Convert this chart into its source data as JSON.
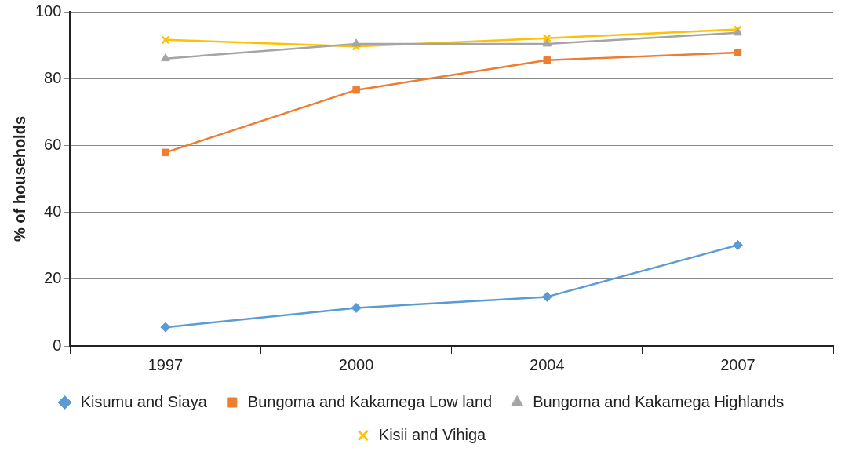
{
  "chart_data": {
    "type": "line",
    "ylabel": "% of households",
    "categories": [
      "1997",
      "2000",
      "2004",
      "2007"
    ],
    "series": [
      {
        "name": "Kisumu and Siaya",
        "color": "#5b9bd5",
        "marker": "diamond",
        "values": [
          5.6,
          11.4,
          14.7,
          30.2
        ]
      },
      {
        "name": "Bungoma and Kakamega Low land",
        "color": "#ed7d31",
        "marker": "square",
        "values": [
          57.9,
          76.6,
          85.5,
          87.8
        ]
      },
      {
        "name": "Bungoma and Kakamega Highlands",
        "color": "#a5a5a5",
        "marker": "triangle",
        "values": [
          86,
          90.4,
          90.4,
          93.7
        ]
      },
      {
        "name": "Kisii and Vihiga",
        "color": "#ffc000",
        "marker": "cross",
        "values": [
          91.6,
          89.6,
          92.1,
          94.7
        ]
      }
    ],
    "ylim": [
      0,
      100
    ],
    "yticks": [
      0,
      20,
      40,
      60,
      80,
      100
    ],
    "grid": "y",
    "legend": "bottom"
  }
}
